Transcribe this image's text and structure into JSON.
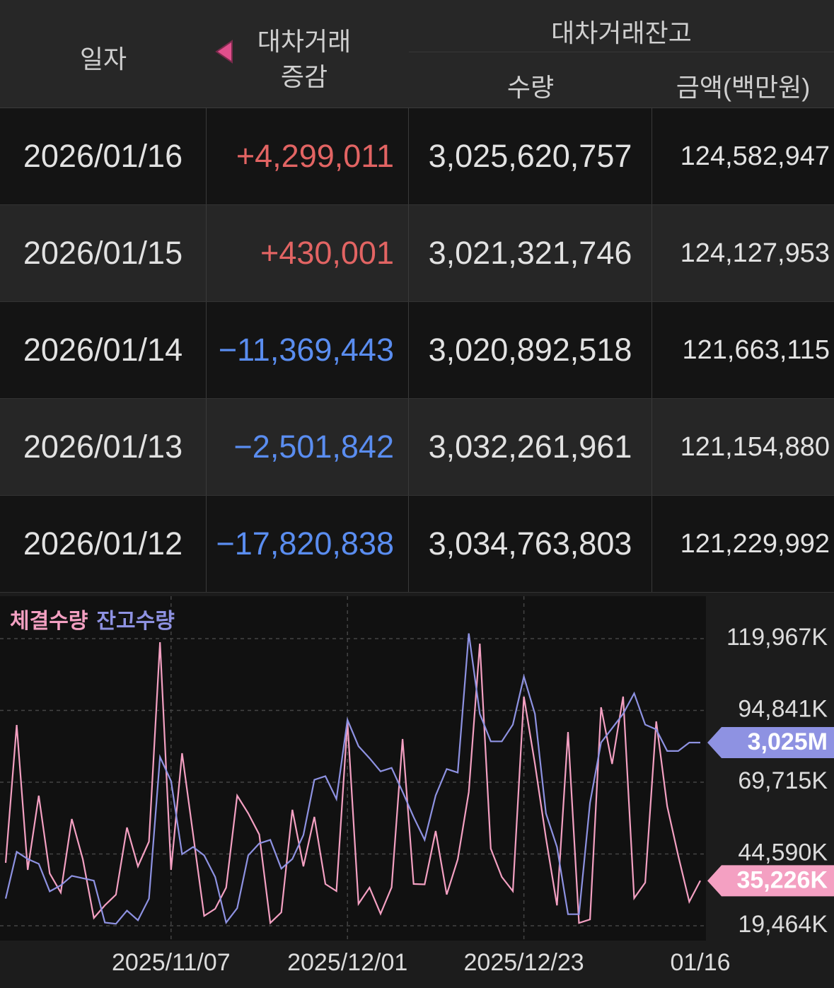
{
  "header": {
    "date": "일자",
    "change": [
      "대차거래",
      "증감"
    ],
    "balance": "대차거래잔고",
    "quantity": "수량",
    "amount": "금액(백만원)"
  },
  "table": {
    "rows": [
      [
        "2026/01/16",
        "+4,299,011",
        "3,025,620,757",
        "124,582,947"
      ],
      [
        "2026/01/15",
        "+430,001",
        "3,021,321,746",
        "124,127,953"
      ],
      [
        "2026/01/14",
        "−11,369,443",
        "3,020,892,518",
        "121,663,115"
      ],
      [
        "2026/01/13",
        "−2,501,842",
        "3,032,261,961",
        "121,154,880"
      ],
      [
        "2026/01/12",
        "−17,820,838",
        "3,034,763,803",
        "121,229,992"
      ]
    ]
  },
  "chart_data": {
    "type": "line",
    "categories": [
      null,
      null,
      null,
      null,
      null,
      null,
      null,
      null,
      null,
      null,
      null,
      null,
      null,
      null,
      null,
      "2025/11/07",
      null,
      null,
      null,
      null,
      null,
      null,
      null,
      null,
      null,
      null,
      null,
      null,
      null,
      null,
      null,
      "2025/12/01",
      null,
      null,
      null,
      null,
      null,
      null,
      null,
      null,
      null,
      null,
      null,
      null,
      null,
      null,
      null,
      "2025/12/23",
      null,
      null,
      null,
      null,
      null,
      null,
      null,
      null,
      null,
      null,
      null,
      null,
      null,
      null,
      null,
      "01/16"
    ],
    "ylim": [
      14266,
      134820
    ],
    "yticks": [
      {
        "value": 119967,
        "label": "119,967K"
      },
      {
        "value": 94841,
        "label": "94,841K"
      },
      {
        "value": 69715,
        "label": "69,715K"
      },
      {
        "value": 44590,
        "label": "44,590K"
      },
      {
        "value": 19464,
        "label": "19,464K"
      }
    ],
    "y2lim": [
      2860,
      3147
    ],
    "grid": true,
    "series": [
      {
        "name": "체결수량",
        "color": "#f4a0c2",
        "values": [
          41490,
          89754,
          39017,
          65004,
          37779,
          31097,
          56837,
          42729,
          22187,
          26642,
          30354,
          53867,
          40254,
          48917,
          118712,
          39017,
          79854,
          51392,
          22929,
          25404,
          32829,
          65004,
          58817,
          51392,
          20454,
          24167,
          60054,
          40254,
          57579,
          34067,
          31592,
          90992,
          27137,
          32829,
          23672,
          32900,
          84804,
          34100,
          33950,
          52629,
          30400,
          42700,
          66242,
          118217,
          46442,
          36542,
          31600,
          99654,
          76142,
          50154,
          26600,
          87279,
          20454,
          21692,
          95942,
          76100,
          99700,
          29117,
          34562,
          91000,
          61292,
          43967,
          27879,
          35226
        ],
        "value_labels": [
          null,
          null,
          null,
          null,
          null,
          null,
          null,
          null,
          null,
          null,
          null,
          null,
          null,
          null,
          null,
          null,
          null,
          null,
          null,
          null,
          null,
          null,
          null,
          null,
          null,
          null,
          null,
          null,
          null,
          null,
          null,
          null,
          null,
          null,
          null,
          null,
          null,
          null,
          null,
          null,
          null,
          null,
          null,
          null,
          null,
          null,
          null,
          null,
          null,
          null,
          null,
          null,
          null,
          null,
          null,
          null,
          null,
          null,
          null,
          null,
          null,
          null,
          null,
          "35,226K"
        ]
      },
      {
        "name": "잔고수량",
        "color": "#8e92e2",
        "axis": "y2",
        "values": [
          2895,
          2934,
          2928,
          2924,
          2901,
          2906,
          2914,
          2912,
          2910,
          2875,
          2874,
          2885,
          2877,
          2895,
          3013,
          2993,
          2932,
          2938,
          2931,
          2913,
          2875,
          2887,
          2931,
          2941,
          2944,
          2920,
          2928,
          2948,
          2994,
          2997,
          2978,
          3044,
          3022,
          3012,
          3001,
          3004,
          2984,
          2963,
          2944,
          2981,
          3003,
          3000,
          3116,
          3049,
          3026,
          3026,
          3040,
          3080,
          3049,
          2966,
          2938,
          2882,
          2882,
          2975,
          3025,
          3037,
          3049,
          3066,
          3040,
          3036,
          3018,
          3018,
          3025,
          3025
        ],
        "value_labels": [
          null,
          null,
          null,
          null,
          null,
          null,
          null,
          null,
          null,
          null,
          null,
          null,
          null,
          null,
          null,
          null,
          null,
          null,
          null,
          null,
          null,
          null,
          null,
          null,
          null,
          null,
          null,
          null,
          null,
          null,
          null,
          null,
          null,
          null,
          null,
          null,
          null,
          null,
          null,
          null,
          null,
          null,
          null,
          null,
          null,
          null,
          null,
          null,
          null,
          null,
          null,
          null,
          null,
          null,
          null,
          null,
          null,
          null,
          null,
          null,
          null,
          null,
          null,
          "3,025M"
        ]
      }
    ]
  }
}
